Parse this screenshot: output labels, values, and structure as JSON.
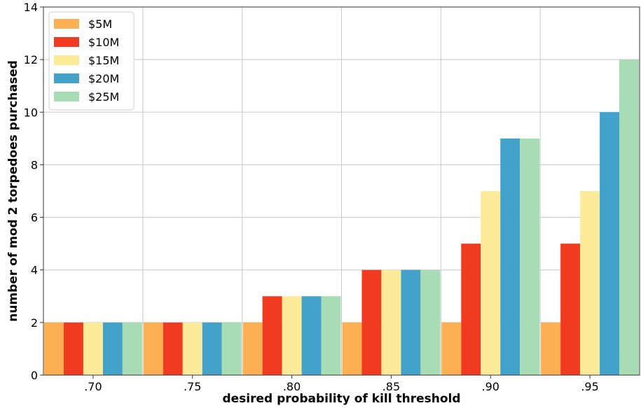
{
  "chart_data": {
    "type": "bar",
    "title": "",
    "xlabel": "desired probability of kill threshold",
    "ylabel": "number of mod 2 torpedoes purchased",
    "categories": [
      ".70",
      ".75",
      ".80",
      ".85",
      ".90",
      ".95"
    ],
    "ylim": [
      0,
      14
    ],
    "yticks": [
      0,
      2,
      4,
      6,
      8,
      10,
      12,
      14
    ],
    "grid": true,
    "legend_position": "top-left",
    "series": [
      {
        "name": "$5M",
        "color": "#fdb052",
        "values": [
          2,
          2,
          2,
          2,
          2,
          2
        ]
      },
      {
        "name": "$10M",
        "color": "#f03b20",
        "values": [
          2,
          2,
          3,
          4,
          5,
          5
        ]
      },
      {
        "name": "$15M",
        "color": "#feeb9a",
        "values": [
          2,
          2,
          3,
          4,
          7,
          7
        ]
      },
      {
        "name": "$20M",
        "color": "#42a2c9",
        "values": [
          2,
          2,
          3,
          4,
          9,
          10
        ]
      },
      {
        "name": "$25M",
        "color": "#a8dcb5",
        "values": [
          2,
          2,
          3,
          4,
          9,
          12
        ]
      }
    ]
  }
}
